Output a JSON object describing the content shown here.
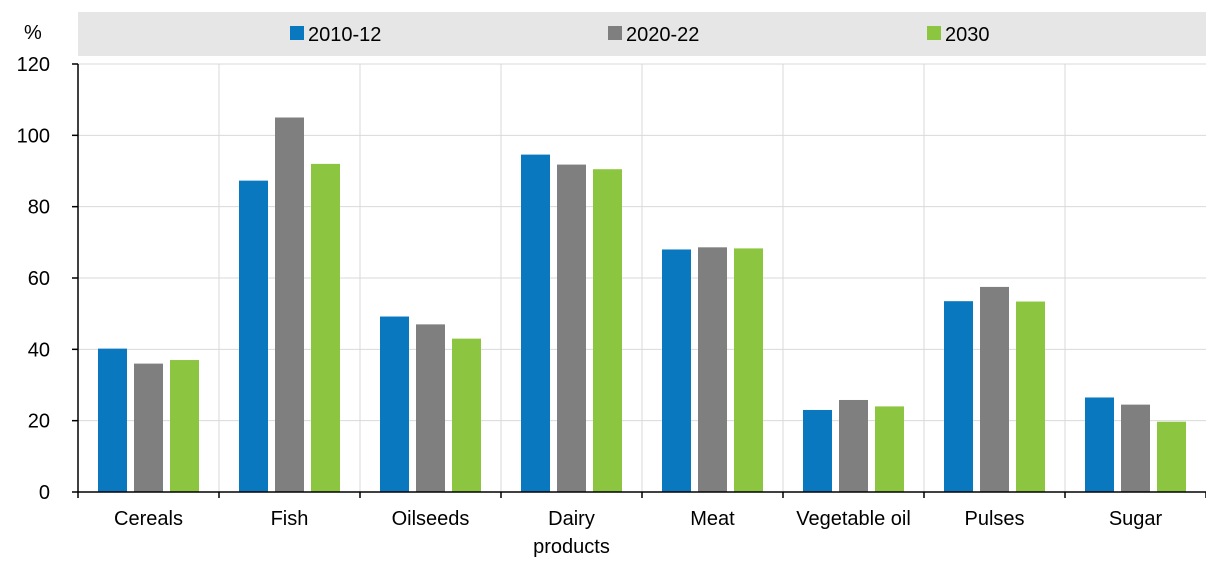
{
  "chart_data": {
    "type": "bar",
    "unit": "%",
    "categories": [
      [
        "Cereals"
      ],
      [
        "Fish"
      ],
      [
        "Oilseeds"
      ],
      [
        "Dairy",
        "products"
      ],
      [
        "Meat"
      ],
      [
        "Vegetable oil"
      ],
      [
        "Pulses"
      ],
      [
        "Sugar"
      ]
    ],
    "series": [
      {
        "name": "2010-12",
        "color": "#0a78be",
        "values": [
          40.2,
          87.3,
          49.2,
          94.6,
          68.0,
          23.0,
          53.5,
          26.5
        ]
      },
      {
        "name": "2020-22",
        "color": "#7f7f7f",
        "values": [
          36.0,
          105.0,
          47.0,
          91.8,
          68.6,
          25.8,
          57.5,
          24.5
        ]
      },
      {
        "name": "2030",
        "color": "#8cc540",
        "values": [
          37.0,
          92.0,
          43.0,
          90.5,
          68.3,
          24.0,
          53.4,
          19.7
        ]
      }
    ],
    "ylim": [
      0,
      120
    ],
    "yticks": [
      0,
      20,
      40,
      60,
      80,
      100,
      120
    ],
    "legend_position": "top",
    "grid": true
  }
}
